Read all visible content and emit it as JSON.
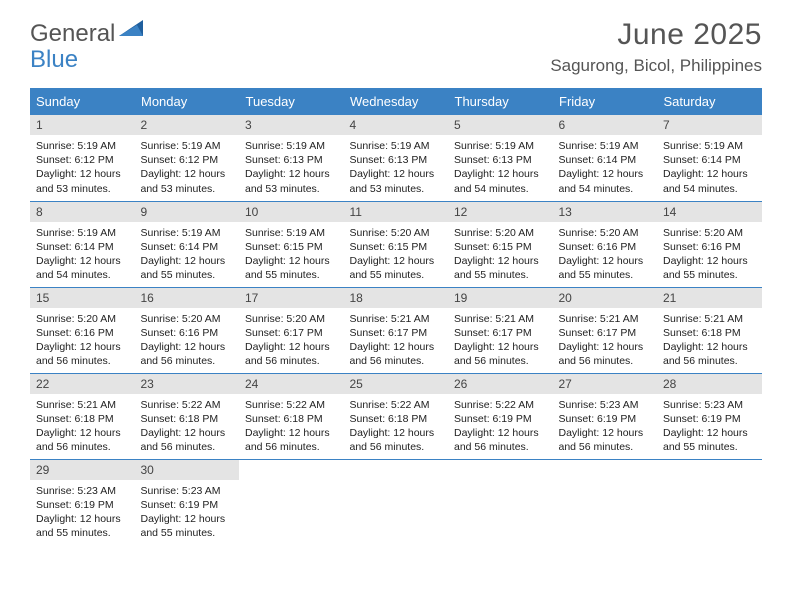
{
  "logo": {
    "text1": "General",
    "text2": "Blue"
  },
  "title": "June 2025",
  "location": "Sagurong, Bicol, Philippines",
  "colors": {
    "header_bg": "#3b82c4",
    "daynum_bg": "#e4e4e4",
    "border": "#3b82c4",
    "text": "#333333",
    "title_text": "#555555"
  },
  "weekdays": [
    "Sunday",
    "Monday",
    "Tuesday",
    "Wednesday",
    "Thursday",
    "Friday",
    "Saturday"
  ],
  "days": [
    {
      "n": "1",
      "sr": "5:19 AM",
      "ss": "6:12 PM",
      "dl": "12 hours and 53 minutes."
    },
    {
      "n": "2",
      "sr": "5:19 AM",
      "ss": "6:12 PM",
      "dl": "12 hours and 53 minutes."
    },
    {
      "n": "3",
      "sr": "5:19 AM",
      "ss": "6:13 PM",
      "dl": "12 hours and 53 minutes."
    },
    {
      "n": "4",
      "sr": "5:19 AM",
      "ss": "6:13 PM",
      "dl": "12 hours and 53 minutes."
    },
    {
      "n": "5",
      "sr": "5:19 AM",
      "ss": "6:13 PM",
      "dl": "12 hours and 54 minutes."
    },
    {
      "n": "6",
      "sr": "5:19 AM",
      "ss": "6:14 PM",
      "dl": "12 hours and 54 minutes."
    },
    {
      "n": "7",
      "sr": "5:19 AM",
      "ss": "6:14 PM",
      "dl": "12 hours and 54 minutes."
    },
    {
      "n": "8",
      "sr": "5:19 AM",
      "ss": "6:14 PM",
      "dl": "12 hours and 54 minutes."
    },
    {
      "n": "9",
      "sr": "5:19 AM",
      "ss": "6:14 PM",
      "dl": "12 hours and 55 minutes."
    },
    {
      "n": "10",
      "sr": "5:19 AM",
      "ss": "6:15 PM",
      "dl": "12 hours and 55 minutes."
    },
    {
      "n": "11",
      "sr": "5:20 AM",
      "ss": "6:15 PM",
      "dl": "12 hours and 55 minutes."
    },
    {
      "n": "12",
      "sr": "5:20 AM",
      "ss": "6:15 PM",
      "dl": "12 hours and 55 minutes."
    },
    {
      "n": "13",
      "sr": "5:20 AM",
      "ss": "6:16 PM",
      "dl": "12 hours and 55 minutes."
    },
    {
      "n": "14",
      "sr": "5:20 AM",
      "ss": "6:16 PM",
      "dl": "12 hours and 55 minutes."
    },
    {
      "n": "15",
      "sr": "5:20 AM",
      "ss": "6:16 PM",
      "dl": "12 hours and 56 minutes."
    },
    {
      "n": "16",
      "sr": "5:20 AM",
      "ss": "6:16 PM",
      "dl": "12 hours and 56 minutes."
    },
    {
      "n": "17",
      "sr": "5:20 AM",
      "ss": "6:17 PM",
      "dl": "12 hours and 56 minutes."
    },
    {
      "n": "18",
      "sr": "5:21 AM",
      "ss": "6:17 PM",
      "dl": "12 hours and 56 minutes."
    },
    {
      "n": "19",
      "sr": "5:21 AM",
      "ss": "6:17 PM",
      "dl": "12 hours and 56 minutes."
    },
    {
      "n": "20",
      "sr": "5:21 AM",
      "ss": "6:17 PM",
      "dl": "12 hours and 56 minutes."
    },
    {
      "n": "21",
      "sr": "5:21 AM",
      "ss": "6:18 PM",
      "dl": "12 hours and 56 minutes."
    },
    {
      "n": "22",
      "sr": "5:21 AM",
      "ss": "6:18 PM",
      "dl": "12 hours and 56 minutes."
    },
    {
      "n": "23",
      "sr": "5:22 AM",
      "ss": "6:18 PM",
      "dl": "12 hours and 56 minutes."
    },
    {
      "n": "24",
      "sr": "5:22 AM",
      "ss": "6:18 PM",
      "dl": "12 hours and 56 minutes."
    },
    {
      "n": "25",
      "sr": "5:22 AM",
      "ss": "6:18 PM",
      "dl": "12 hours and 56 minutes."
    },
    {
      "n": "26",
      "sr": "5:22 AM",
      "ss": "6:19 PM",
      "dl": "12 hours and 56 minutes."
    },
    {
      "n": "27",
      "sr": "5:23 AM",
      "ss": "6:19 PM",
      "dl": "12 hours and 56 minutes."
    },
    {
      "n": "28",
      "sr": "5:23 AM",
      "ss": "6:19 PM",
      "dl": "12 hours and 55 minutes."
    },
    {
      "n": "29",
      "sr": "5:23 AM",
      "ss": "6:19 PM",
      "dl": "12 hours and 55 minutes."
    },
    {
      "n": "30",
      "sr": "5:23 AM",
      "ss": "6:19 PM",
      "dl": "12 hours and 55 minutes."
    }
  ],
  "labels": {
    "sunrise": "Sunrise:",
    "sunset": "Sunset:",
    "daylight": "Daylight:"
  }
}
